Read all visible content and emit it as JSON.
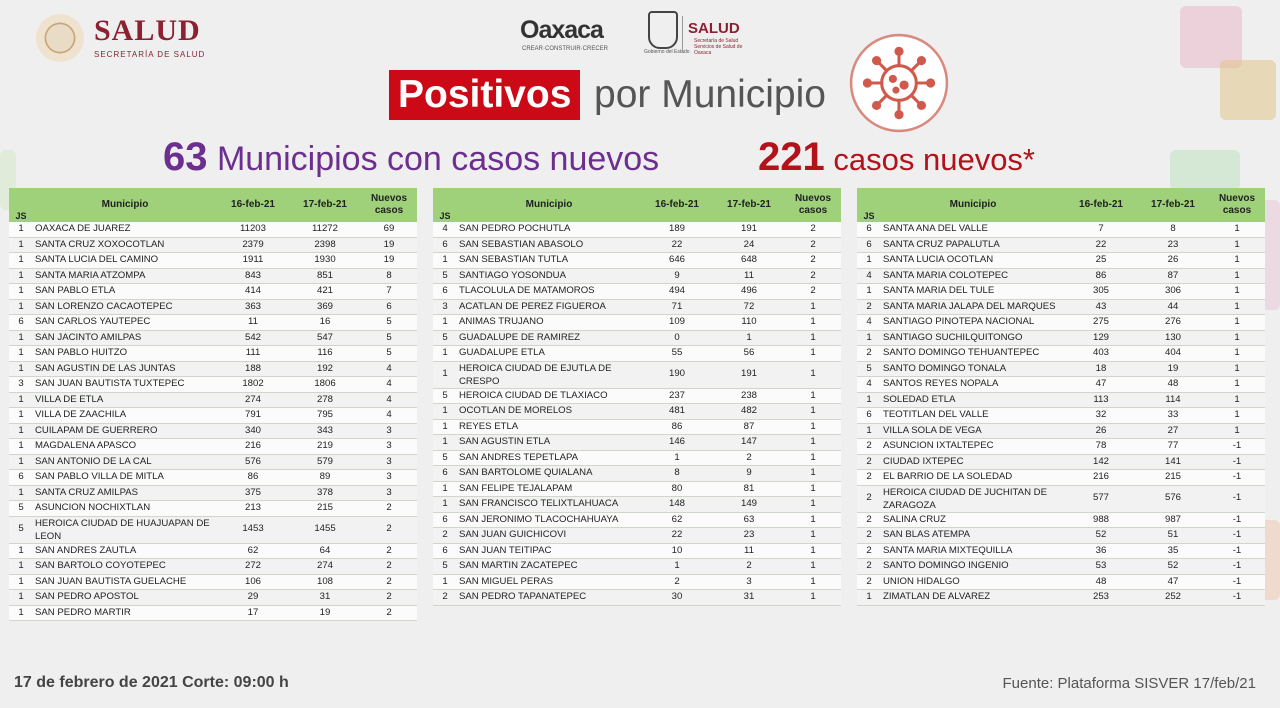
{
  "header": {
    "salud_title": "SALUD",
    "salud_subtitle": "SECRETARÍA DE SALUD",
    "oaxaca_title": "Oaxaca",
    "oaxaca_subtitle": "CREAR·CONSTRUIR·CRECER",
    "oaxaca_gov": "Gobierno del Estado",
    "oaxaca_salud": "SALUD",
    "oaxaca_salud_sub": "Secretaría de Salud Servicios de Salud de Oaxaca",
    "badge": "Positivos",
    "title_rest": "por Municipio"
  },
  "stats": {
    "municipios_count": "63",
    "municipios_label": "Municipios con casos nuevos",
    "casos_count": "221",
    "casos_label": "casos nuevos*"
  },
  "columns": {
    "js": "JS",
    "municipio": "Municipio",
    "d1": "16-feb-21",
    "d2": "17-feb-21",
    "nuevos": "Nuevos casos"
  },
  "tables": [
    [
      [
        "1",
        "OAXACA DE JUAREZ",
        "11203",
        "11272",
        "69"
      ],
      [
        "1",
        "SANTA CRUZ XOXOCOTLAN",
        "2379",
        "2398",
        "19"
      ],
      [
        "1",
        "SANTA LUCIA DEL CAMINO",
        "1911",
        "1930",
        "19"
      ],
      [
        "1",
        "SANTA MARIA ATZOMPA",
        "843",
        "851",
        "8"
      ],
      [
        "1",
        "SAN PABLO ETLA",
        "414",
        "421",
        "7"
      ],
      [
        "1",
        "SAN LORENZO CACAOTEPEC",
        "363",
        "369",
        "6"
      ],
      [
        "6",
        "SAN CARLOS YAUTEPEC",
        "11",
        "16",
        "5"
      ],
      [
        "1",
        "SAN JACINTO AMILPAS",
        "542",
        "547",
        "5"
      ],
      [
        "1",
        "SAN PABLO HUITZO",
        "111",
        "116",
        "5"
      ],
      [
        "1",
        "SAN AGUSTIN DE LAS JUNTAS",
        "188",
        "192",
        "4"
      ],
      [
        "3",
        "SAN JUAN BAUTISTA TUXTEPEC",
        "1802",
        "1806",
        "4"
      ],
      [
        "1",
        "VILLA DE ETLA",
        "274",
        "278",
        "4"
      ],
      [
        "1",
        "VILLA DE ZAACHILA",
        "791",
        "795",
        "4"
      ],
      [
        "1",
        "CUILAPAM DE GUERRERO",
        "340",
        "343",
        "3"
      ],
      [
        "1",
        "MAGDALENA APASCO",
        "216",
        "219",
        "3"
      ],
      [
        "1",
        "SAN ANTONIO DE LA CAL",
        "576",
        "579",
        "3"
      ],
      [
        "6",
        "SAN PABLO VILLA DE MITLA",
        "86",
        "89",
        "3"
      ],
      [
        "1",
        "SANTA CRUZ AMILPAS",
        "375",
        "378",
        "3"
      ],
      [
        "5",
        "ASUNCION NOCHIXTLAN",
        "213",
        "215",
        "2"
      ],
      [
        "5",
        "HEROICA CIUDAD DE HUAJUAPAN DE LEON",
        "1453",
        "1455",
        "2"
      ],
      [
        "1",
        "SAN ANDRES ZAUTLA",
        "62",
        "64",
        "2"
      ],
      [
        "1",
        "SAN BARTOLO COYOTEPEC",
        "272",
        "274",
        "2"
      ],
      [
        "1",
        "SAN JUAN BAUTISTA GUELACHE",
        "106",
        "108",
        "2"
      ],
      [
        "1",
        "SAN PEDRO APOSTOL",
        "29",
        "31",
        "2"
      ],
      [
        "1",
        "SAN PEDRO MARTIR",
        "17",
        "19",
        "2"
      ]
    ],
    [
      [
        "4",
        "SAN PEDRO POCHUTLA",
        "189",
        "191",
        "2"
      ],
      [
        "6",
        "SAN SEBASTIAN ABASOLO",
        "22",
        "24",
        "2"
      ],
      [
        "1",
        "SAN SEBASTIAN TUTLA",
        "646",
        "648",
        "2"
      ],
      [
        "5",
        "SANTIAGO YOSONDUA",
        "9",
        "11",
        "2"
      ],
      [
        "6",
        "TLACOLULA DE MATAMOROS",
        "494",
        "496",
        "2"
      ],
      [
        "3",
        "ACATLAN DE PEREZ FIGUEROA",
        "71",
        "72",
        "1"
      ],
      [
        "1",
        "ANIMAS TRUJANO",
        "109",
        "110",
        "1"
      ],
      [
        "5",
        "GUADALUPE DE RAMIREZ",
        "0",
        "1",
        "1"
      ],
      [
        "1",
        "GUADALUPE ETLA",
        "55",
        "56",
        "1"
      ],
      [
        "1",
        "HEROICA CIUDAD DE EJUTLA DE CRESPO",
        "190",
        "191",
        "1"
      ],
      [
        "5",
        "HEROICA CIUDAD DE TLAXIACO",
        "237",
        "238",
        "1"
      ],
      [
        "1",
        "OCOTLAN DE MORELOS",
        "481",
        "482",
        "1"
      ],
      [
        "1",
        "REYES ETLA",
        "86",
        "87",
        "1"
      ],
      [
        "1",
        "SAN AGUSTIN ETLA",
        "146",
        "147",
        "1"
      ],
      [
        "5",
        "SAN ANDRES TEPETLAPA",
        "1",
        "2",
        "1"
      ],
      [
        "6",
        "SAN BARTOLOME QUIALANA",
        "8",
        "9",
        "1"
      ],
      [
        "1",
        "SAN FELIPE TEJALAPAM",
        "80",
        "81",
        "1"
      ],
      [
        "1",
        "SAN FRANCISCO TELIXTLAHUACA",
        "148",
        "149",
        "1"
      ],
      [
        "6",
        "SAN JERONIMO TLACOCHAHUAYA",
        "62",
        "63",
        "1"
      ],
      [
        "2",
        "SAN JUAN GUICHICOVI",
        "22",
        "23",
        "1"
      ],
      [
        "6",
        "SAN JUAN TEITIPAC",
        "10",
        "11",
        "1"
      ],
      [
        "5",
        "SAN MARTIN ZACATEPEC",
        "1",
        "2",
        "1"
      ],
      [
        "1",
        "SAN MIGUEL PERAS",
        "2",
        "3",
        "1"
      ],
      [
        "2",
        "SAN PEDRO TAPANATEPEC",
        "30",
        "31",
        "1"
      ]
    ],
    [
      [
        "6",
        "SANTA ANA DEL VALLE",
        "7",
        "8",
        "1"
      ],
      [
        "6",
        "SANTA CRUZ PAPALUTLA",
        "22",
        "23",
        "1"
      ],
      [
        "1",
        "SANTA LUCIA OCOTLAN",
        "25",
        "26",
        "1"
      ],
      [
        "4",
        "SANTA MARIA COLOTEPEC",
        "86",
        "87",
        "1"
      ],
      [
        "1",
        "SANTA MARIA DEL TULE",
        "305",
        "306",
        "1"
      ],
      [
        "2",
        "SANTA MARIA JALAPA DEL MARQUES",
        "43",
        "44",
        "1"
      ],
      [
        "4",
        "SANTIAGO PINOTEPA NACIONAL",
        "275",
        "276",
        "1"
      ],
      [
        "1",
        "SANTIAGO SUCHILQUITONGO",
        "129",
        "130",
        "1"
      ],
      [
        "2",
        "SANTO DOMINGO TEHUANTEPEC",
        "403",
        "404",
        "1"
      ],
      [
        "5",
        "SANTO DOMINGO TONALA",
        "18",
        "19",
        "1"
      ],
      [
        "4",
        "SANTOS REYES NOPALA",
        "47",
        "48",
        "1"
      ],
      [
        "1",
        "SOLEDAD ETLA",
        "113",
        "114",
        "1"
      ],
      [
        "6",
        "TEOTITLAN DEL VALLE",
        "32",
        "33",
        "1"
      ],
      [
        "1",
        "VILLA SOLA DE VEGA",
        "26",
        "27",
        "1"
      ],
      [
        "2",
        "ASUNCION IXTALTEPEC",
        "78",
        "77",
        "-1"
      ],
      [
        "2",
        "CIUDAD IXTEPEC",
        "142",
        "141",
        "-1"
      ],
      [
        "2",
        "EL BARRIO DE LA SOLEDAD",
        "216",
        "215",
        "-1"
      ],
      [
        "2",
        "HEROICA CIUDAD DE JUCHITAN DE ZARAGOZA",
        "577",
        "576",
        "-1"
      ],
      [
        "2",
        "SALINA CRUZ",
        "988",
        "987",
        "-1"
      ],
      [
        "2",
        "SAN BLAS ATEMPA",
        "52",
        "51",
        "-1"
      ],
      [
        "2",
        "SANTA MARIA MIXTEQUILLA",
        "36",
        "35",
        "-1"
      ],
      [
        "2",
        "SANTO DOMINGO INGENIO",
        "53",
        "52",
        "-1"
      ],
      [
        "2",
        "UNION HIDALGO",
        "48",
        "47",
        "-1"
      ],
      [
        "1",
        "ZIMATLAN DE ALVAREZ",
        "253",
        "252",
        "-1"
      ]
    ]
  ],
  "footer": {
    "date": "17 de febrero de 2021 Corte: 09:00 h",
    "source": "Fuente:  Plataforma  SISVER 17/feb/21"
  },
  "colors": {
    "badge": "#cc0a17",
    "purple": "#6c2f8f",
    "red": "#b3121b",
    "header_green": "#9fd07a"
  }
}
